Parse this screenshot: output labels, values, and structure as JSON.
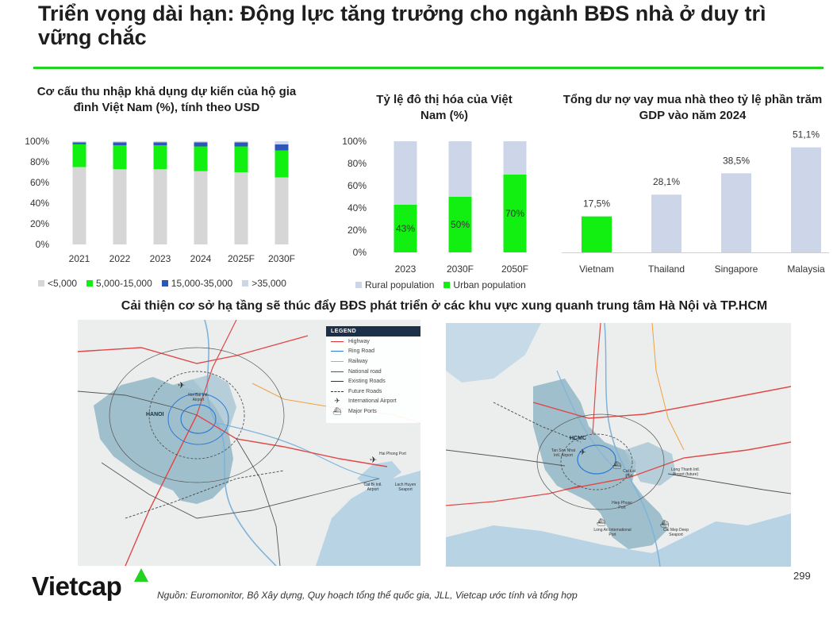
{
  "page": {
    "title": "Triển vọng dài hạn: Động lực tăng trưởng cho ngành BĐS nhà ở duy trì vững chắc",
    "section_title": "Cải thiện cơ sở hạ tầng sẽ thúc đẩy BĐS phát triển ở các khu vực xung quanh trung tâm Hà Nội và TP.HCM",
    "source": "Nguồn: Euromonitor, Bộ Xây dựng, Quy hoạch tổng thể quốc gia, JLL, Vietcap ước tính và tổng hợp",
    "page_number": "299",
    "logo": "Vietcap"
  },
  "colors": {
    "accent": "#22d322",
    "grey": "#d6d6d6",
    "green": "#11f011",
    "navy": "#2e55b8",
    "light_blue": "#ccd6e8"
  },
  "chart_data": [
    {
      "type": "bar",
      "stacked": true,
      "title": "Cơ cấu thu nhập khả dụng dự kiến của hộ gia đình Việt Nam (%), tính theo USD",
      "categories": [
        "2021",
        "2022",
        "2023",
        "2024",
        "2025F",
        "2030F"
      ],
      "y_ticks": [
        "0%",
        "20%",
        "40%",
        "60%",
        "80%",
        "100%"
      ],
      "ylim": [
        0,
        100
      ],
      "legend_position": "bottom",
      "series": [
        {
          "name": "<5,000",
          "color": "#d6d6d6",
          "values": [
            75,
            73,
            73,
            71,
            70,
            65
          ]
        },
        {
          "name": "5,000-15,000",
          "color": "#11f011",
          "values": [
            22,
            23,
            23,
            24,
            25,
            26
          ]
        },
        {
          "name": "15,000-35,000",
          "color": "#2e55b8",
          "values": [
            2,
            3,
            3,
            4,
            4,
            6
          ]
        },
        {
          "name": ">35,000",
          "color": "#ccd6e8",
          "values": [
            1,
            1,
            1,
            1,
            1,
            3
          ]
        }
      ]
    },
    {
      "type": "bar",
      "stacked": true,
      "title": "Tỷ lệ đô thị hóa của Việt Nam (%)",
      "categories": [
        "2023",
        "2030F",
        "2050F"
      ],
      "y_ticks": [
        "0%",
        "20%",
        "40%",
        "60%",
        "80%",
        "100%"
      ],
      "ylim": [
        0,
        100
      ],
      "legend_position": "bottom",
      "series": [
        {
          "name": "Urban population",
          "color": "#11f011",
          "values": [
            43,
            50,
            70
          ],
          "labels": [
            "43%",
            "50%",
            "70%"
          ]
        },
        {
          "name": "Rural population",
          "color": "#ccd6e8",
          "values": [
            57,
            50,
            30
          ]
        }
      ],
      "legend_order": [
        "Rural population",
        "Urban population"
      ]
    },
    {
      "type": "bar",
      "title": "Tổng dư nợ vay mua nhà theo tỷ lệ phần trăm GDP vào năm 2024",
      "categories": [
        "Vietnam",
        "Thailand",
        "Singapore",
        "Malaysia"
      ],
      "values": [
        17.5,
        28.1,
        38.5,
        51.1
      ],
      "labels": [
        "17,5%",
        "28,1%",
        "38,5%",
        "51,1%"
      ],
      "colors": [
        "#11f011",
        "#ccd6e8",
        "#ccd6e8",
        "#ccd6e8"
      ],
      "ylim": [
        0,
        56
      ]
    }
  ],
  "maps": {
    "hanoi": {
      "city_label": "HANOI",
      "airport_label": "Noi Bai Intl. Airport",
      "east_labels": [
        "Hai Phong Port",
        "Cat Bi Intl. Airport",
        "Lach Huyen Seaport"
      ],
      "legend": {
        "title": "LEGEND",
        "items": [
          {
            "label": "Highway",
            "color": "#e03030",
            "style": "solid",
            "icon": "line"
          },
          {
            "label": "Ring Road",
            "color": "#2f7bd6",
            "style": "solid",
            "icon": "line"
          },
          {
            "label": "Railway",
            "color": "#f0a040",
            "style": "solid",
            "icon": "line"
          },
          {
            "label": "National road",
            "color": "#555555",
            "style": "solid",
            "icon": "line"
          },
          {
            "label": "Existing Roads",
            "color": "#333333",
            "style": "solid",
            "icon": "line"
          },
          {
            "label": "Future Roads",
            "color": "#333333",
            "style": "dashed",
            "icon": "line"
          },
          {
            "label": "International Airport",
            "icon": "airplane-icon",
            "glyph": "✈"
          },
          {
            "label": "Major Ports",
            "icon": "ship-icon",
            "glyph": "⛴"
          }
        ]
      }
    },
    "hcmc": {
      "city_label": "HCMC",
      "labels": [
        "Tan Son Nhat Intl. Airport",
        "Cat Lai Port",
        "Long Thanh Intl. Airport (future)",
        "Hiep Phuoc Port",
        "Long An International Port",
        "Cai Mep Deep Seaport"
      ]
    }
  }
}
